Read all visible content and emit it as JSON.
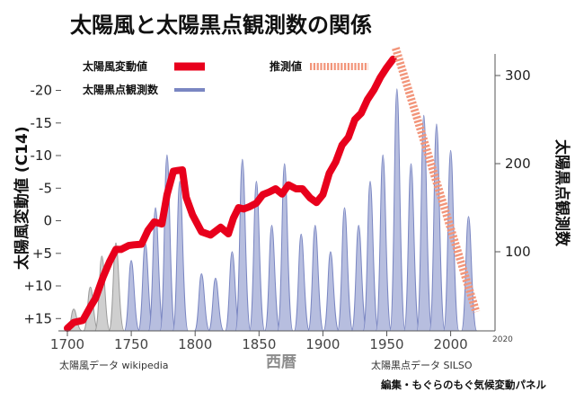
{
  "chart_data": {
    "type": "area+line",
    "title": "太陽風と太陽黒点観測数の関係",
    "xlabel": "西暦",
    "ylabel_left": "太陽風変動値 (C14)",
    "ylabel_right": "太陽黒点観測数",
    "x_ticks": [
      "1700",
      "1750",
      "1800",
      "1850",
      "1900",
      "1950",
      "2000"
    ],
    "x_tick_small": "2020",
    "left_ticks": [
      "-20",
      "-15",
      "-10",
      "-5",
      "0",
      "+5",
      "+10",
      "+15"
    ],
    "right_ticks": [
      "300",
      "200",
      "100"
    ],
    "xlim": [
      1700,
      2020
    ],
    "ylim_left": [
      17,
      -22
    ],
    "ylim_right": [
      -40,
      355
    ],
    "legend": {
      "solar_wind": "太陽風変動値",
      "sunspots": "太陽黒点観測数",
      "forecast": "推測値"
    },
    "source_left": "太陽風データ wikipedia",
    "source_right": "太陽黒点データ SILSO",
    "credit": "編集・もぐらのもぐ気候変動パネル",
    "colors": {
      "solar_wind": "#e8001c",
      "sunspots_fill": "#b7bedf",
      "sunspots_line": "#7a86c2",
      "early_fill": "#cfcfcf",
      "early_line": "#9a9a9a",
      "forecast": "#f2957a"
    },
    "solar_wind": {
      "name": "太陽風変動値",
      "x": [
        1700,
        1705,
        1712,
        1718,
        1722,
        1728,
        1733,
        1738,
        1742,
        1748,
        1752,
        1758,
        1763,
        1768,
        1774,
        1778,
        1783,
        1786,
        1790,
        1793,
        1798,
        1805,
        1812,
        1820,
        1826,
        1830,
        1834,
        1838,
        1842,
        1848,
        1853,
        1858,
        1863,
        1868,
        1873,
        1879,
        1884,
        1890,
        1895,
        1900,
        1905,
        1910,
        1915,
        1920,
        1925,
        1930,
        1935,
        1940,
        1945,
        1950,
        1955
      ],
      "y": [
        16.5,
        15.6,
        15.3,
        13.2,
        11.9,
        8.6,
        6.3,
        4.4,
        4.4,
        3.8,
        3.7,
        3.6,
        1.5,
        0.2,
        0.5,
        -4.0,
        -7.6,
        -7.7,
        -7.8,
        -3.6,
        -0.9,
        1.7,
        2.2,
        1.0,
        2.0,
        -0.4,
        -2.0,
        -1.8,
        -2.1,
        -2.7,
        -4.0,
        -4.4,
        -4.9,
        -4.1,
        -5.5,
        -4.9,
        -4.9,
        -3.5,
        -2.8,
        -4.0,
        -7.3,
        -9.0,
        -11.6,
        -12.8,
        -15.5,
        -16.5,
        -18.6,
        -20.1,
        -22.0,
        -23.5,
        -24.8
      ]
    },
    "forecast": {
      "name": "推測値",
      "x": [
        1957,
        2020
      ],
      "y": [
        -26.5,
        14.0
      ]
    },
    "sunspots": {
      "name": "太陽黒点観測数",
      "early_cycles": [
        {
          "year": 1705,
          "peak": 35
        },
        {
          "year": 1718,
          "peak": 60
        },
        {
          "year": 1727,
          "peak": 95
        },
        {
          "year": 1738,
          "peak": 110
        }
      ],
      "cycles": [
        {
          "year": 1750,
          "peak": 90
        },
        {
          "year": 1761,
          "peak": 110
        },
        {
          "year": 1769,
          "peak": 150
        },
        {
          "year": 1778,
          "peak": 210
        },
        {
          "year": 1788,
          "peak": 180
        },
        {
          "year": 1805,
          "peak": 75
        },
        {
          "year": 1816,
          "peak": 70
        },
        {
          "year": 1829,
          "peak": 100
        },
        {
          "year": 1837,
          "peak": 205
        },
        {
          "year": 1848,
          "peak": 180
        },
        {
          "year": 1860,
          "peak": 130
        },
        {
          "year": 1870,
          "peak": 200
        },
        {
          "year": 1883,
          "peak": 120
        },
        {
          "year": 1894,
          "peak": 130
        },
        {
          "year": 1906,
          "peak": 100
        },
        {
          "year": 1917,
          "peak": 150
        },
        {
          "year": 1928,
          "peak": 130
        },
        {
          "year": 1937,
          "peak": 180
        },
        {
          "year": 1947,
          "peak": 210
        },
        {
          "year": 1958,
          "peak": 285
        },
        {
          "year": 1969,
          "peak": 200
        },
        {
          "year": 1979,
          "peak": 255
        },
        {
          "year": 1989,
          "peak": 245
        },
        {
          "year": 2000,
          "peak": 215
        },
        {
          "year": 2014,
          "peak": 140
        }
      ]
    }
  }
}
